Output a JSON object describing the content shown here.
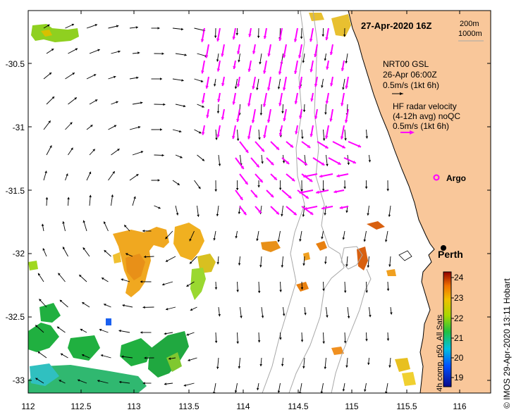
{
  "map": {
    "title": "27-Apr-2020 16Z",
    "depth_contours": [
      "200m",
      "1000m"
    ],
    "legend_gsl": [
      "NRT00 GSL",
      "26-Apr 06:00Z",
      "0.5m/s (1kt 6h)"
    ],
    "legend_hf": [
      "HF radar velocity",
      "(4-12h avg) noQC",
      "0.5m/s (1kt 6h)"
    ],
    "argo_label": "Argo",
    "city_label": "Perth",
    "x_ticks": [
      "112",
      "112.5",
      "113",
      "113.5",
      "114",
      "114.5",
      "115",
      "115.5",
      "116"
    ],
    "y_ticks": [
      "-30.5",
      "-31",
      "-31.5",
      "-32",
      "-32.5",
      "-33"
    ],
    "colorbar": {
      "ticks": [
        "24",
        "23",
        "22",
        "21",
        "20",
        "19"
      ],
      "label": "4h comp, p50, All Sats"
    },
    "credit": "© IMOS 29-Apr-2020 13:11 Hobart",
    "colors": {
      "land": "#F9C79A",
      "hf_vector": "#FF00FF",
      "gsl_vector": "#000000"
    }
  }
}
